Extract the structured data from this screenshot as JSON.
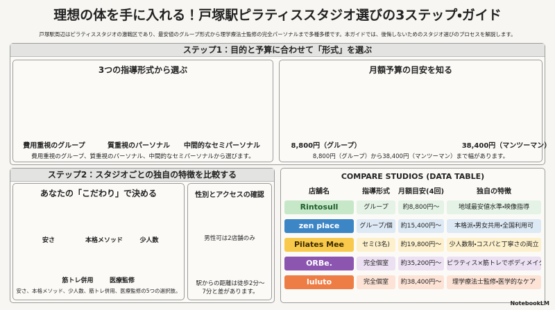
{
  "header": {
    "title": "理想の体を手に入れる！戸塚駅ピラティススタジオ選びの3ステップ・ガイド",
    "subtitle": "戸塚駅周辺はピラティススタジオの激戦区であり、最安値のグループ形式から理学療法士監修の完全パーソナルまで多種多様です。本ガイドでは、後悔しないためのスタジオ選びのプロセスを解説します。"
  },
  "step1": {
    "header": "ステップ1：目的と予算に合わせて「形式」を選ぶ",
    "formats": {
      "title": "3つの指導形式から選ぶ",
      "items": [
        "費用重視のグループ",
        "質重視のパーソナル",
        "中間的なセミパーソナル"
      ],
      "caption": "費用重視のグループ、質重視のパーソナル、中間的なセミパーソナルから選びます。"
    },
    "budget": {
      "title": "月額予算の目安を知る",
      "low": "8,800円（グループ）",
      "high": "38,400円（マンツーマン）",
      "caption": "8,800円（グループ）から38,400円（マンツーマン）まで幅があります。"
    }
  },
  "step2": {
    "header": "ステップ2：スタジオごとの独自の特徴を比較する",
    "preferences": {
      "title": "あなたの「こだわり」で決める",
      "items": [
        "安さ",
        "本格メソッド",
        "少人数",
        "筋トレ併用",
        "医療監修"
      ],
      "caption": "安さ、本格メソッド、少人数、筋トレ併用、医療監修の5つの選択肢。"
    },
    "access": {
      "title": "性別とアクセスの確認",
      "gender": "男性可は2店舗のみ",
      "distance": "駅からの距離は徒歩2分〜7分と差があります。"
    }
  },
  "table": {
    "title": "COMPARE STUDIOS (DATA TABLE)",
    "columns": [
      "店舗名",
      "指導形式",
      "月額目安(4回)",
      "独自の特徴"
    ],
    "rows": [
      [
        "Rintosull",
        "グループ",
        "約8,800円〜",
        "地域最安値水準・映像指導"
      ],
      [
        "zen place",
        "グループ/個",
        "約15,400円〜",
        "本格派・男女共用・全国利用可"
      ],
      [
        "Pilates Mee",
        "セミ(3名)",
        "約19,800円〜",
        "少人数制・コスパと丁寧さの両立"
      ],
      [
        "ORBe.",
        "完全個室",
        "約35,200円〜",
        "ピラティス×筋トレでボディメイク"
      ],
      [
        "luluto",
        "完全個室",
        "約38,400円〜",
        "理学療法士監修・医学的なケア"
      ]
    ]
  },
  "footer": {
    "brand": "NotebookLM"
  }
}
